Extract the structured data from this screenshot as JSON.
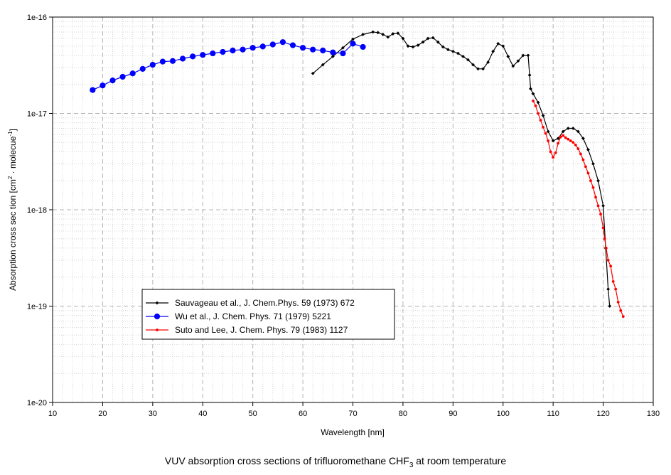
{
  "chart_data": {
    "type": "line",
    "title": "VUV absorption cross sections of trifluoromethane CHF",
    "title_sub": "3",
    "title_tail": " at room temperature",
    "xlabel": "Wavelength [nm]",
    "ylabel_prefix": "Absorption cross sec tion [cm",
    "ylabel_sup1": "2",
    "ylabel_mid": " · molecue",
    "ylabel_sup2": "-1",
    "ylabel_suffix": "]",
    "xlim": [
      10,
      130
    ],
    "ylim": [
      1e-20,
      1e-16
    ],
    "yscale": "log",
    "grid": true,
    "legend_position": "lower-left",
    "x_ticks": [
      10,
      20,
      30,
      40,
      50,
      60,
      70,
      80,
      90,
      100,
      110,
      120,
      130
    ],
    "y_ticks": [
      {
        "value": 1e-16,
        "label": "1e-16"
      },
      {
        "value": 1e-17,
        "label": "1e-17"
      },
      {
        "value": 1e-18,
        "label": "1e-18"
      },
      {
        "value": 1e-19,
        "label": "1e-19"
      },
      {
        "value": 1e-20,
        "label": "1e-20"
      }
    ],
    "series": [
      {
        "name": "Sauvageau et al., J. Chem.Phys. 59 (1973) 672",
        "color": "#000000",
        "marker": "diamond",
        "x": [
          62,
          64,
          66,
          68,
          70,
          72,
          74,
          75,
          76,
          77,
          78,
          79,
          80,
          81,
          82,
          83,
          84,
          85,
          86,
          87,
          88,
          89,
          90,
          91,
          92,
          93,
          94,
          95,
          96,
          97,
          98,
          99,
          100,
          101,
          102,
          103,
          104,
          105,
          105.3,
          105.5,
          106,
          107,
          108,
          109,
          110,
          111,
          112,
          113,
          114,
          115,
          116,
          117,
          118,
          119,
          120,
          120.5,
          121,
          121.3
        ],
        "y": [
          2.6e-17,
          3.2e-17,
          3.9e-17,
          4.8e-17,
          5.9e-17,
          6.6e-17,
          7e-17,
          6.9e-17,
          6.6e-17,
          6.2e-17,
          6.7e-17,
          6.8e-17,
          6e-17,
          5e-17,
          4.9e-17,
          5.1e-17,
          5.5e-17,
          6e-17,
          6.1e-17,
          5.5e-17,
          4.9e-17,
          4.6e-17,
          4.4e-17,
          4.2e-17,
          3.9e-17,
          3.6e-17,
          3.2e-17,
          2.9e-17,
          2.9e-17,
          3.4e-17,
          4.4e-17,
          5.3e-17,
          5e-17,
          3.9e-17,
          3.1e-17,
          3.5e-17,
          4e-17,
          4e-17,
          2.5e-17,
          1.8e-17,
          1.6e-17,
          1.3e-17,
          9.5e-18,
          6.5e-18,
          5.2e-18,
          5.5e-18,
          6.5e-18,
          7e-18,
          7e-18,
          6.5e-18,
          5.5e-18,
          4.2e-18,
          3e-18,
          2e-18,
          1.1e-18,
          4e-19,
          1.5e-19,
          1e-19
        ]
      },
      {
        "name": "Wu et al., J. Chem. Phys. 71 (1979) 5221",
        "color": "#0000ff",
        "marker": "circle",
        "x": [
          18,
          20,
          22,
          24,
          26,
          28,
          30,
          32,
          34,
          36,
          38,
          40,
          42,
          44,
          46,
          48,
          50,
          52,
          54,
          56,
          58,
          60,
          62,
          64,
          66,
          68,
          70,
          72
        ],
        "y": [
          1.75e-17,
          1.95e-17,
          2.2e-17,
          2.4e-17,
          2.6e-17,
          2.9e-17,
          3.2e-17,
          3.45e-17,
          3.5e-17,
          3.7e-17,
          3.9e-17,
          4.05e-17,
          4.2e-17,
          4.35e-17,
          4.5e-17,
          4.6e-17,
          4.8e-17,
          4.95e-17,
          5.2e-17,
          5.5e-17,
          5.1e-17,
          4.8e-17,
          4.6e-17,
          4.5e-17,
          4.3e-17,
          4.2e-17,
          5.3e-17,
          4.9e-17
        ]
      },
      {
        "name": "Suto and Lee, J. Chem. Phys. 79  (1983) 1127",
        "color": "#ff0000",
        "marker": "dot",
        "x": [
          106,
          106.5,
          107,
          107.5,
          108,
          108.5,
          109,
          109.5,
          110,
          110.5,
          111,
          111.5,
          112,
          112.5,
          113,
          113.5,
          114,
          114.5,
          115,
          115.5,
          116,
          116.5,
          117,
          117.5,
          118,
          118.5,
          119,
          119.5,
          120,
          120.3,
          120.6,
          121,
          121.5,
          122,
          122.5,
          123,
          123.5,
          124
        ],
        "y": [
          1.35e-17,
          1.2e-17,
          1e-17,
          8.5e-18,
          7.2e-18,
          6.2e-18,
          5.2e-18,
          4e-18,
          3.5e-18,
          3.9e-18,
          4.9e-18,
          5.7e-18,
          5.9e-18,
          5.6e-18,
          5.4e-18,
          5.2e-18,
          5e-18,
          4.7e-18,
          4.3e-18,
          3.8e-18,
          3.3e-18,
          2.8e-18,
          2.4e-18,
          2e-18,
          1.7e-18,
          1.35e-18,
          1.1e-18,
          9e-19,
          6.5e-19,
          5e-19,
          4e-19,
          3e-19,
          2.6e-19,
          1.8e-19,
          1.5e-19,
          1.1e-19,
          9e-20,
          7.8e-20
        ]
      }
    ]
  }
}
